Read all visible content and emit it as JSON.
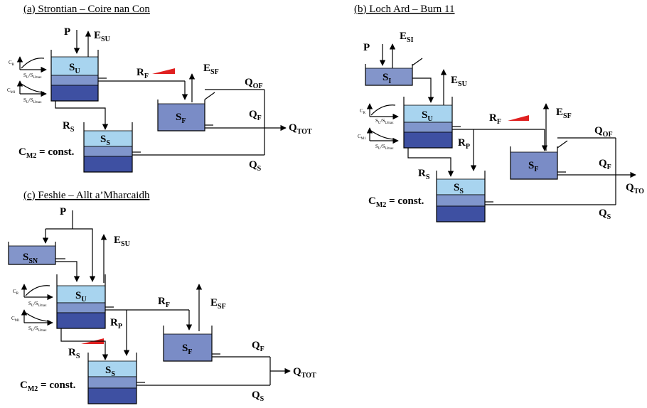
{
  "panels": {
    "a": {
      "title": "(a) Strontian – Coire nan Con"
    },
    "b": {
      "title": "(b) Loch Ard – Burn 11"
    },
    "c": {
      "title": "(c) Feshie – Allt a’Mharcaidh"
    }
  },
  "labels": {
    "P": "P",
    "E": "E",
    "SU": "SU",
    "SF": "SF",
    "SI": "SI",
    "S": "S",
    "U": "U",
    "F": "F",
    "I": "I",
    "SN": "SN",
    "R": "R",
    "P_sub": "P",
    "Q": "Q",
    "OF": "OF",
    "TOT": "TOT",
    "TO": "TO",
    "C": "C",
    "M2": "M2",
    "const": " = const.",
    "CR": "C",
    "R_sub": "R",
    "CM1": "C",
    "M1_sub": "M1",
    "ratio_a": "S",
    "ratio_b": "U",
    "ratio_c": "/S",
    "ratio_d": "Umax"
  },
  "colors": {
    "top_layer": "#a8d4ef",
    "mid_layer": "#8096cc",
    "bottom_layer": "#3e50a2",
    "fast_store": "#7a8cc6",
    "interception": "#8395ca",
    "snow": "#8395ca",
    "ramp": "#e02020"
  }
}
